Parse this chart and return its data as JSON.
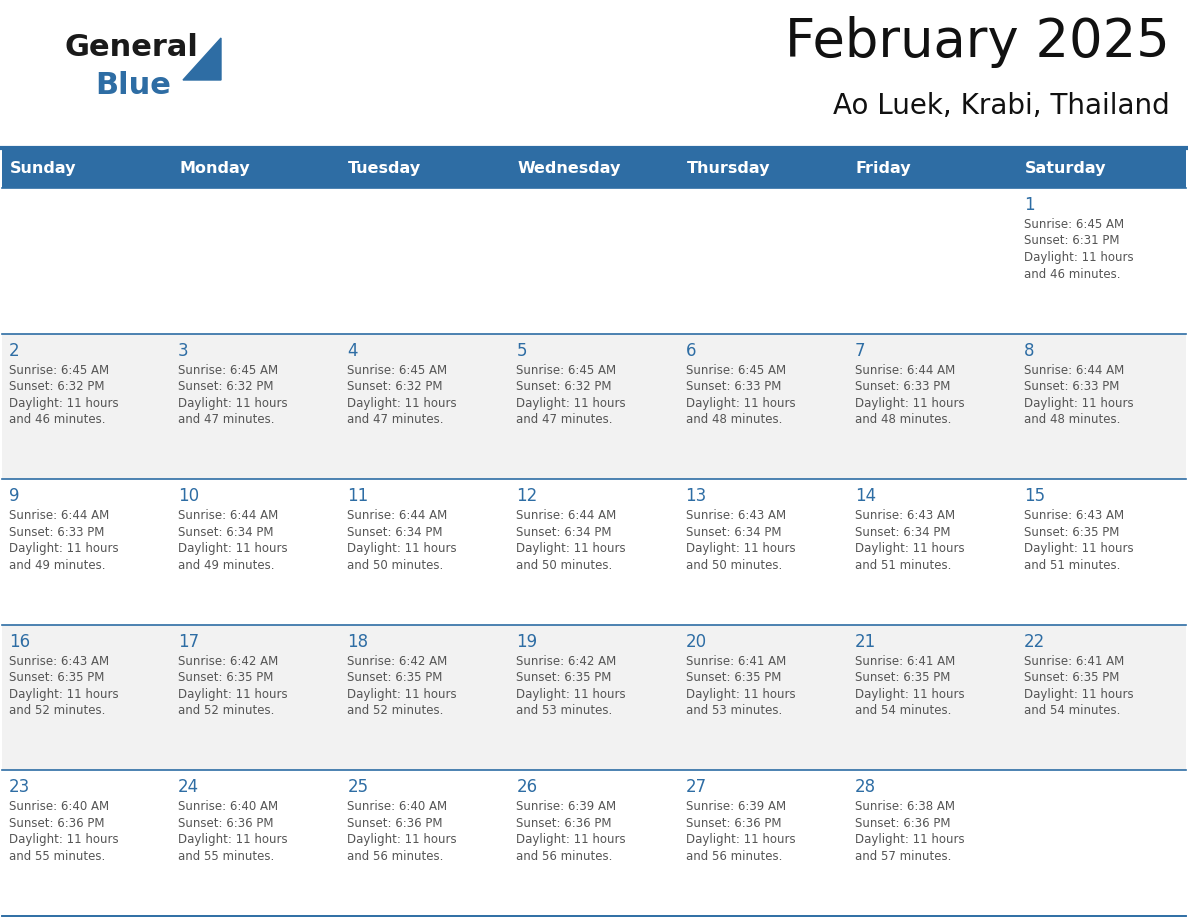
{
  "title": "February 2025",
  "subtitle": "Ao Luek, Krabi, Thailand",
  "header_color": "#2E6DA4",
  "header_text_color": "#FFFFFF",
  "days_of_week": [
    "Sunday",
    "Monday",
    "Tuesday",
    "Wednesday",
    "Thursday",
    "Friday",
    "Saturday"
  ],
  "background_color": "#FFFFFF",
  "cell_bg_white": "#FFFFFF",
  "cell_bg_gray": "#F2F2F2",
  "separator_color": "#2E6DA4",
  "day_number_color": "#2E6DA4",
  "text_color": "#555555",
  "calendar_data": [
    [
      null,
      null,
      null,
      null,
      null,
      null,
      {
        "day": 1,
        "sunrise": "6:45 AM",
        "sunset": "6:31 PM",
        "daylight": "11 hours and 46 minutes."
      }
    ],
    [
      {
        "day": 2,
        "sunrise": "6:45 AM",
        "sunset": "6:32 PM",
        "daylight": "11 hours and 46 minutes."
      },
      {
        "day": 3,
        "sunrise": "6:45 AM",
        "sunset": "6:32 PM",
        "daylight": "11 hours and 47 minutes."
      },
      {
        "day": 4,
        "sunrise": "6:45 AM",
        "sunset": "6:32 PM",
        "daylight": "11 hours and 47 minutes."
      },
      {
        "day": 5,
        "sunrise": "6:45 AM",
        "sunset": "6:32 PM",
        "daylight": "11 hours and 47 minutes."
      },
      {
        "day": 6,
        "sunrise": "6:45 AM",
        "sunset": "6:33 PM",
        "daylight": "11 hours and 48 minutes."
      },
      {
        "day": 7,
        "sunrise": "6:44 AM",
        "sunset": "6:33 PM",
        "daylight": "11 hours and 48 minutes."
      },
      {
        "day": 8,
        "sunrise": "6:44 AM",
        "sunset": "6:33 PM",
        "daylight": "11 hours and 48 minutes."
      }
    ],
    [
      {
        "day": 9,
        "sunrise": "6:44 AM",
        "sunset": "6:33 PM",
        "daylight": "11 hours and 49 minutes."
      },
      {
        "day": 10,
        "sunrise": "6:44 AM",
        "sunset": "6:34 PM",
        "daylight": "11 hours and 49 minutes."
      },
      {
        "day": 11,
        "sunrise": "6:44 AM",
        "sunset": "6:34 PM",
        "daylight": "11 hours and 50 minutes."
      },
      {
        "day": 12,
        "sunrise": "6:44 AM",
        "sunset": "6:34 PM",
        "daylight": "11 hours and 50 minutes."
      },
      {
        "day": 13,
        "sunrise": "6:43 AM",
        "sunset": "6:34 PM",
        "daylight": "11 hours and 50 minutes."
      },
      {
        "day": 14,
        "sunrise": "6:43 AM",
        "sunset": "6:34 PM",
        "daylight": "11 hours and 51 minutes."
      },
      {
        "day": 15,
        "sunrise": "6:43 AM",
        "sunset": "6:35 PM",
        "daylight": "11 hours and 51 minutes."
      }
    ],
    [
      {
        "day": 16,
        "sunrise": "6:43 AM",
        "sunset": "6:35 PM",
        "daylight": "11 hours and 52 minutes."
      },
      {
        "day": 17,
        "sunrise": "6:42 AM",
        "sunset": "6:35 PM",
        "daylight": "11 hours and 52 minutes."
      },
      {
        "day": 18,
        "sunrise": "6:42 AM",
        "sunset": "6:35 PM",
        "daylight": "11 hours and 52 minutes."
      },
      {
        "day": 19,
        "sunrise": "6:42 AM",
        "sunset": "6:35 PM",
        "daylight": "11 hours and 53 minutes."
      },
      {
        "day": 20,
        "sunrise": "6:41 AM",
        "sunset": "6:35 PM",
        "daylight": "11 hours and 53 minutes."
      },
      {
        "day": 21,
        "sunrise": "6:41 AM",
        "sunset": "6:35 PM",
        "daylight": "11 hours and 54 minutes."
      },
      {
        "day": 22,
        "sunrise": "6:41 AM",
        "sunset": "6:35 PM",
        "daylight": "11 hours and 54 minutes."
      }
    ],
    [
      {
        "day": 23,
        "sunrise": "6:40 AM",
        "sunset": "6:36 PM",
        "daylight": "11 hours and 55 minutes."
      },
      {
        "day": 24,
        "sunrise": "6:40 AM",
        "sunset": "6:36 PM",
        "daylight": "11 hours and 55 minutes."
      },
      {
        "day": 25,
        "sunrise": "6:40 AM",
        "sunset": "6:36 PM",
        "daylight": "11 hours and 56 minutes."
      },
      {
        "day": 26,
        "sunrise": "6:39 AM",
        "sunset": "6:36 PM",
        "daylight": "11 hours and 56 minutes."
      },
      {
        "day": 27,
        "sunrise": "6:39 AM",
        "sunset": "6:36 PM",
        "daylight": "11 hours and 56 minutes."
      },
      {
        "day": 28,
        "sunrise": "6:38 AM",
        "sunset": "6:36 PM",
        "daylight": "11 hours and 57 minutes."
      },
      null
    ]
  ]
}
